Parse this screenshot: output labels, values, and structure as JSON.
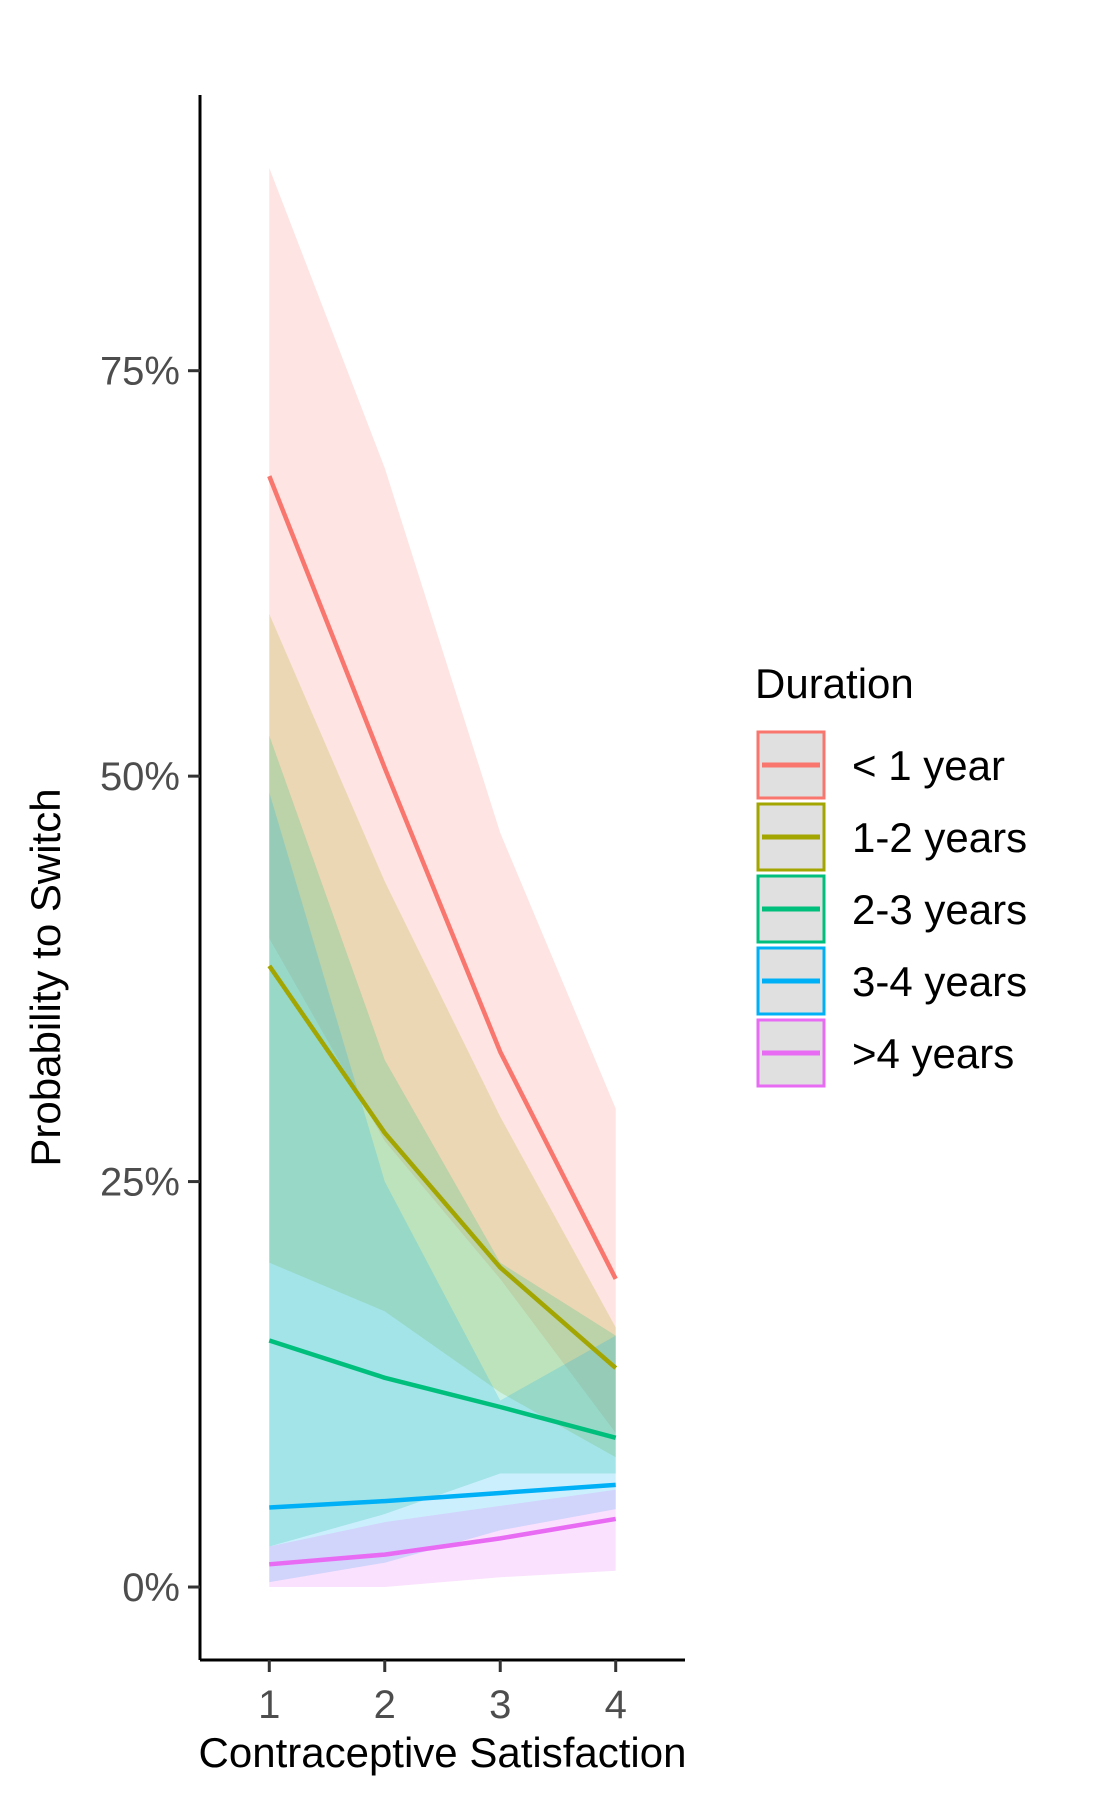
{
  "chart_data": {
    "type": "line",
    "title": "",
    "xlabel": "Contraceptive Satisfaction",
    "ylabel": "Probability to Switch",
    "x": [
      1,
      2,
      3,
      4
    ],
    "x_ticks": [
      "1",
      "2",
      "3",
      "4"
    ],
    "y_ticks": [
      "0%",
      "25%",
      "50%",
      "75%"
    ],
    "y_tick_values": [
      0,
      0.25,
      0.5,
      0.75
    ],
    "xlim": [
      0.4,
      4.6
    ],
    "ylim": [
      -0.045,
      0.92
    ],
    "grid": false,
    "legend": {
      "title": "Duration",
      "position": "right"
    },
    "series": [
      {
        "name": "< 1 year",
        "color": "#F8766D",
        "values": [
          0.685,
          0.505,
          0.33,
          0.19
        ],
        "lower": [
          0.4,
          0.275,
          0.19,
          0.095
        ],
        "upper": [
          0.875,
          0.69,
          0.465,
          0.295
        ]
      },
      {
        "name": "1-2 years",
        "color": "#A3A500",
        "values": [
          0.383,
          0.28,
          0.197,
          0.135
        ],
        "lower": [
          0.2,
          0.17,
          0.12,
          0.08
        ],
        "upper": [
          0.6,
          0.435,
          0.29,
          0.16
        ]
      },
      {
        "name": "2-3 years",
        "color": "#00BF7D",
        "values": [
          0.152,
          0.129,
          0.111,
          0.092
        ],
        "lower": [
          0.025,
          0.045,
          0.07,
          0.07
        ],
        "upper": [
          0.525,
          0.325,
          0.2,
          0.155
        ]
      },
      {
        "name": "3-4 years",
        "color": "#00B0F6",
        "values": [
          0.049,
          0.053,
          0.058,
          0.063
        ],
        "lower": [
          0.003,
          0.015,
          0.035,
          0.048
        ],
        "upper": [
          0.49,
          0.25,
          0.115,
          0.155
        ]
      },
      {
        "name": ">4 years",
        "color": "#E76BF3",
        "values": [
          0.014,
          0.02,
          0.03,
          0.042
        ],
        "lower": [
          0.0,
          0.0,
          0.006,
          0.01
        ],
        "upper": [
          0.025,
          0.04,
          0.05,
          0.06
        ]
      }
    ]
  }
}
